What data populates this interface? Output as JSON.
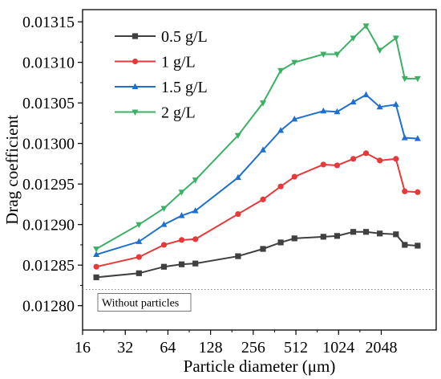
{
  "chart_data": {
    "type": "line",
    "xlabel": "Particle diameter (μm)",
    "ylabel": "Drag coefficient",
    "xscale": "log2",
    "xlim": [
      16,
      5000
    ],
    "ylim": [
      0.01277,
      0.013165
    ],
    "x_ticks": [
      16,
      32,
      64,
      128,
      256,
      512,
      1024,
      2048
    ],
    "x_tick_labels": [
      "16",
      "32",
      "64",
      "128",
      "256",
      "512",
      "1024",
      "2048"
    ],
    "y_ticks": [
      0.0128,
      0.01285,
      0.0129,
      0.01295,
      0.013,
      0.01305,
      0.0131,
      0.01315
    ],
    "y_tick_labels": [
      "0.01280",
      "0.01285",
      "0.01290",
      "0.01295",
      "0.01300",
      "0.01305",
      "0.01310",
      "0.01315"
    ],
    "grid": false,
    "legend_position": "top-left",
    "x": [
      20,
      40,
      60,
      80,
      100,
      200,
      300,
      400,
      500,
      800,
      1000,
      1300,
      1600,
      2000,
      2600,
      3000,
      3700
    ],
    "series": [
      {
        "name": "0.5 g/L",
        "color": "#404040",
        "marker": "square",
        "values": [
          0.012835,
          0.01284,
          0.012848,
          0.012851,
          0.012852,
          0.012861,
          0.01287,
          0.012878,
          0.012883,
          0.012885,
          0.012886,
          0.012891,
          0.012891,
          0.012889,
          0.012888,
          0.012875,
          0.012874
        ]
      },
      {
        "name": "1 g/L",
        "color": "#e8393a",
        "marker": "circle",
        "values": [
          0.012848,
          0.01286,
          0.012875,
          0.012881,
          0.012882,
          0.012913,
          0.012931,
          0.012947,
          0.012959,
          0.012974,
          0.012973,
          0.012981,
          0.012988,
          0.012979,
          0.012981,
          0.012941,
          0.01294
        ]
      },
      {
        "name": "1.5 g/L",
        "color": "#1f6fd0",
        "marker": "triangle-up",
        "values": [
          0.012863,
          0.012879,
          0.0129,
          0.012911,
          0.012917,
          0.012958,
          0.012992,
          0.013016,
          0.01303,
          0.01304,
          0.013039,
          0.013051,
          0.01306,
          0.013045,
          0.013048,
          0.013007,
          0.013006
        ]
      },
      {
        "name": "2 g/L",
        "color": "#3cb064",
        "marker": "triangle-down",
        "values": [
          0.01287,
          0.0129,
          0.01292,
          0.01294,
          0.012955,
          0.01301,
          0.01305,
          0.01309,
          0.0131,
          0.01311,
          0.01311,
          0.01313,
          0.013145,
          0.013115,
          0.01313,
          0.01308,
          0.01308
        ]
      }
    ],
    "reference_line": {
      "value": 0.01282,
      "label": "Without particles",
      "style": "dotted"
    }
  }
}
